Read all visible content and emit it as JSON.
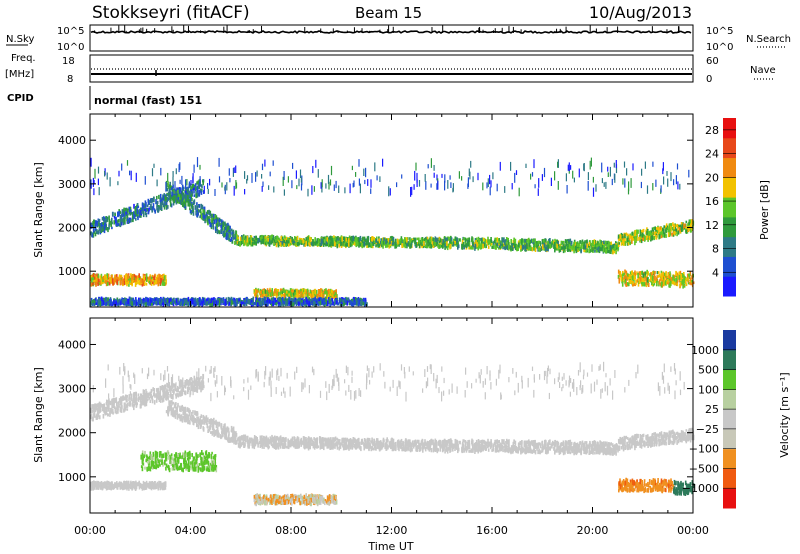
{
  "header": {
    "station": "Stokkseyri (fitACF)",
    "beam": "Beam 15",
    "date": "10/Aug/2013"
  },
  "status_panels": {
    "nsky_label": "N.Sky",
    "nsky_ticks": [
      "10^5",
      "10^0"
    ],
    "nsearch_label": "N.Search",
    "nsearch_ticks": [
      "10^5",
      "10^0"
    ],
    "freq_label": "Freq.",
    "freq_unit": "[MHz]",
    "freq_ticks": [
      "18",
      "8"
    ],
    "nave_label": "Nave",
    "nave_ticks": [
      "60",
      "0"
    ],
    "cpid_label": "CPID",
    "cpid_value": "normal (fast) 151"
  },
  "colors": {
    "power_scale": [
      "#1a1aff",
      "#1e4fd1",
      "#2d7a86",
      "#2f9a3c",
      "#5cc62a",
      "#f2c200",
      "#f08a10",
      "#e8481a",
      "#e81010"
    ],
    "velocity_scale": [
      "#e81010",
      "#f05a10",
      "#f09020",
      "#c8c8b8",
      "#c8c8c8",
      "#b8d0a0",
      "#5cc62a",
      "#2d7a5a",
      "#1a3aa0"
    ]
  },
  "chart_data": [
    {
      "type": "heatmap",
      "title": "",
      "xlabel": "Time UT",
      "ylabel": "Slant Range [km]",
      "x_ticks": [
        "00:00",
        "04:00",
        "08:00",
        "12:00",
        "16:00",
        "20:00",
        "00:00"
      ],
      "y_ticks": [
        "1000",
        "2000",
        "3000",
        "4000"
      ],
      "xlim_hours": [
        0,
        24
      ],
      "ylim_km": [
        180,
        4600
      ],
      "colorbar_label": "Power [dB]",
      "colorbar_ticks": [
        "4",
        "8",
        "12",
        "16",
        "20",
        "24",
        "28"
      ],
      "colorbar_range": [
        0,
        30
      ],
      "scatter_regions": [
        {
          "t0": 0.0,
          "t1": 4.5,
          "r_start": 1950,
          "r_end": 2950,
          "value": 8,
          "spread": 160
        },
        {
          "t0": 3.0,
          "t1": 5.8,
          "r_start": 2900,
          "r_end": 1750,
          "value": 9,
          "spread": 160
        },
        {
          "t0": 5.8,
          "t1": 14.0,
          "r_start": 1700,
          "r_end": 1650,
          "value": 14,
          "spread": 90
        },
        {
          "t0": 14.0,
          "t1": 21.0,
          "r_start": 1650,
          "r_end": 1550,
          "value": 13,
          "spread": 110
        },
        {
          "t0": 21.0,
          "t1": 24.0,
          "r_start": 1700,
          "r_end": 2050,
          "value": 16,
          "spread": 120
        },
        {
          "t0": 0.0,
          "t1": 3.0,
          "r_start": 800,
          "r_end": 800,
          "value": 20,
          "spread": 100
        },
        {
          "t0": 6.5,
          "t1": 9.8,
          "r_start": 500,
          "r_end": 480,
          "value": 18,
          "spread": 70
        },
        {
          "t0": 0.0,
          "t1": 11.0,
          "r_start": 300,
          "r_end": 300,
          "value": 6,
          "spread": 60
        },
        {
          "t0": 21.0,
          "t1": 24.0,
          "r_start": 850,
          "r_end": 800,
          "value": 18,
          "spread": 150
        },
        {
          "t0": 0.0,
          "t1": 24.0,
          "r_start": 3150,
          "r_end": 3150,
          "value": 6,
          "spread": 350
        }
      ]
    },
    {
      "type": "heatmap",
      "title": "",
      "xlabel": "Time UT",
      "ylabel": "Slant Range [km]",
      "x_ticks": [
        "00:00",
        "04:00",
        "08:00",
        "12:00",
        "16:00",
        "20:00",
        "00:00"
      ],
      "y_ticks": [
        "1000",
        "2000",
        "3000",
        "4000"
      ],
      "xlim_hours": [
        0,
        24
      ],
      "ylim_km": [
        180,
        4600
      ],
      "colorbar_label": "Velocity [m s⁻¹]",
      "colorbar_ticks": [
        "1000",
        "500",
        "100",
        "25",
        "−25",
        "−100",
        "−500",
        "−1000"
      ],
      "scatter_regions": [
        {
          "t0": 0.0,
          "t1": 4.5,
          "r_start": 2450,
          "r_end": 3150,
          "value": 0,
          "spread": 160
        },
        {
          "t0": 3.0,
          "t1": 5.8,
          "r_start": 2600,
          "r_end": 1900,
          "value": 0,
          "spread": 160
        },
        {
          "t0": 5.8,
          "t1": 14.0,
          "r_start": 1800,
          "r_end": 1700,
          "value": 0,
          "spread": 110
        },
        {
          "t0": 14.0,
          "t1": 21.0,
          "r_start": 1700,
          "r_end": 1650,
          "value": 0,
          "spread": 120
        },
        {
          "t0": 21.0,
          "t1": 24.0,
          "r_start": 1750,
          "r_end": 1950,
          "value": 0,
          "spread": 130
        },
        {
          "t0": 0.0,
          "t1": 3.0,
          "r_start": 800,
          "r_end": 800,
          "value": 0,
          "spread": 60
        },
        {
          "t0": 2.0,
          "t1": 5.0,
          "r_start": 1350,
          "r_end": 1350,
          "value": 200,
          "spread": 200
        },
        {
          "t0": 6.5,
          "t1": 9.8,
          "r_start": 480,
          "r_end": 480,
          "value": -60,
          "spread": 90
        },
        {
          "t0": 21.0,
          "t1": 23.2,
          "r_start": 800,
          "r_end": 800,
          "value": -400,
          "spread": 120
        },
        {
          "t0": 23.2,
          "t1": 24.0,
          "r_start": 750,
          "r_end": 750,
          "value": 700,
          "spread": 130
        },
        {
          "t0": 0.0,
          "t1": 24.0,
          "r_start": 3150,
          "r_end": 3150,
          "value": 0,
          "spread": 350
        }
      ]
    }
  ]
}
